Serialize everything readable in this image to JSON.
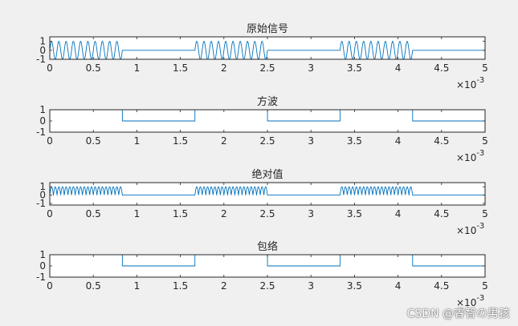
{
  "colors": {
    "figure_bg": "#f0f0f0",
    "axes_bg": "#ffffff",
    "axes_edge": "#262626",
    "text": "#262626",
    "line": "#0072bd"
  },
  "watermark": "CSDN @睿智の男孩",
  "chart_data": [
    {
      "type": "line",
      "title": "原始信号",
      "xlim": [
        0,
        0.005
      ],
      "ylim": [
        -1,
        1.5
      ],
      "x_ticks": [
        0,
        0.0005,
        0.001,
        0.0015,
        0.002,
        0.0025,
        0.003,
        0.0035,
        0.004,
        0.0045,
        0.005
      ],
      "x_tick_labels": [
        "0",
        "0.5",
        "1",
        "1.5",
        "2",
        "2.5",
        "3",
        "3.5",
        "4",
        "4.5",
        "5"
      ],
      "y_ticks": [
        -1,
        0,
        1
      ],
      "y_tick_labels": [
        "-1",
        "0",
        "1"
      ],
      "x_exponent": "-3",
      "grid": false,
      "signal": "carrier_times_square",
      "square_period": 0.001667,
      "on_fraction": 0.5,
      "carrier_cycles_per_burst": 10,
      "carrier_amplitude": 1
    },
    {
      "type": "line",
      "title": "方波",
      "xlim": [
        0,
        0.005
      ],
      "ylim": [
        -1,
        1
      ],
      "x_ticks": [
        0,
        0.0005,
        0.001,
        0.0015,
        0.002,
        0.0025,
        0.003,
        0.0035,
        0.004,
        0.0045,
        0.005
      ],
      "x_tick_labels": [
        "0",
        "0.5",
        "1",
        "1.5",
        "2",
        "2.5",
        "3",
        "3.5",
        "4",
        "4.5",
        "5"
      ],
      "y_ticks": [
        -1,
        0,
        1
      ],
      "y_tick_labels": [
        "-1",
        "0",
        "1"
      ],
      "x_exponent": "-3",
      "grid": false,
      "signal": "square",
      "square_period": 0.001667,
      "on_fraction": 0.5,
      "high": 1,
      "low": 0
    },
    {
      "type": "line",
      "title": "绝对值",
      "xlim": [
        0,
        0.005
      ],
      "ylim": [
        -1.2,
        1.5
      ],
      "x_ticks": [
        0,
        0.0005,
        0.001,
        0.0015,
        0.002,
        0.0025,
        0.003,
        0.0035,
        0.004,
        0.0045,
        0.005
      ],
      "x_tick_labels": [
        "0",
        "0.5",
        "1",
        "1.5",
        "2",
        "2.5",
        "3",
        "3.5",
        "4",
        "4.5",
        "5"
      ],
      "y_ticks": [
        -1,
        0,
        1
      ],
      "y_tick_labels": [
        "-1",
        "0",
        "1"
      ],
      "x_exponent": "-3",
      "grid": false,
      "signal": "abs_carrier_times_square",
      "square_period": 0.001667,
      "on_fraction": 0.5,
      "carrier_cycles_per_burst": 10,
      "carrier_amplitude": 1
    },
    {
      "type": "line",
      "title": "包络",
      "xlim": [
        0,
        0.005
      ],
      "ylim": [
        -1,
        1
      ],
      "x_ticks": [
        0,
        0.0005,
        0.001,
        0.0015,
        0.002,
        0.0025,
        0.003,
        0.0035,
        0.004,
        0.0045,
        0.005
      ],
      "x_tick_labels": [
        "0",
        "0.5",
        "1",
        "1.5",
        "2",
        "2.5",
        "3",
        "3.5",
        "4",
        "4.5",
        "5"
      ],
      "y_ticks": [
        -1,
        0,
        1
      ],
      "y_tick_labels": [
        "-1",
        "0",
        "1"
      ],
      "x_exponent": "-3",
      "grid": false,
      "signal": "square",
      "square_period": 0.001667,
      "on_fraction": 0.5,
      "high": 1,
      "low": 0
    }
  ]
}
